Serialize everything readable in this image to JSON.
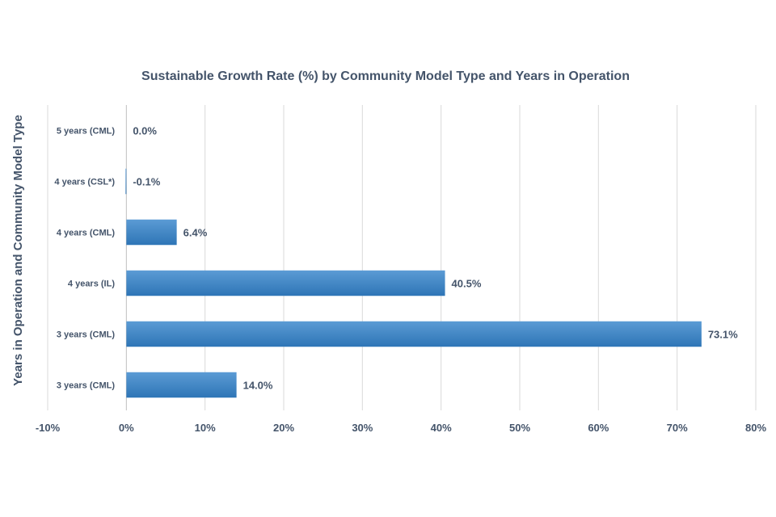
{
  "chart_data": {
    "type": "bar",
    "orientation": "horizontal",
    "title": "Sustainable Growth Rate (%) by Community Model Type and Years in Operation",
    "xlabel": "",
    "ylabel": "Years in Operation and Community Model Type",
    "categories": [
      "5 years (CML)",
      "4 years (CSL*)",
      "4 years (CML)",
      "4 years (IL)",
      "3 years (CML)",
      "3 years (CML)"
    ],
    "values": [
      0.0,
      -0.1,
      6.4,
      40.5,
      73.1,
      14.0
    ],
    "data_labels": [
      "0.0%",
      "-0.1%",
      "6.4%",
      "40.5%",
      "73.1%",
      "14.0%"
    ],
    "xlim": [
      -10,
      80
    ],
    "x_ticks": [
      -10,
      0,
      10,
      20,
      30,
      40,
      50,
      60,
      70,
      80
    ],
    "x_tick_labels": [
      "-10%",
      "0%",
      "10%",
      "20%",
      "30%",
      "40%",
      "50%",
      "60%",
      "70%",
      "80%"
    ],
    "grid": true,
    "legend": "none",
    "colors": {
      "bar_top": "#5b9bd5",
      "bar_bottom": "#2e75b6",
      "text": "#44546a"
    }
  }
}
